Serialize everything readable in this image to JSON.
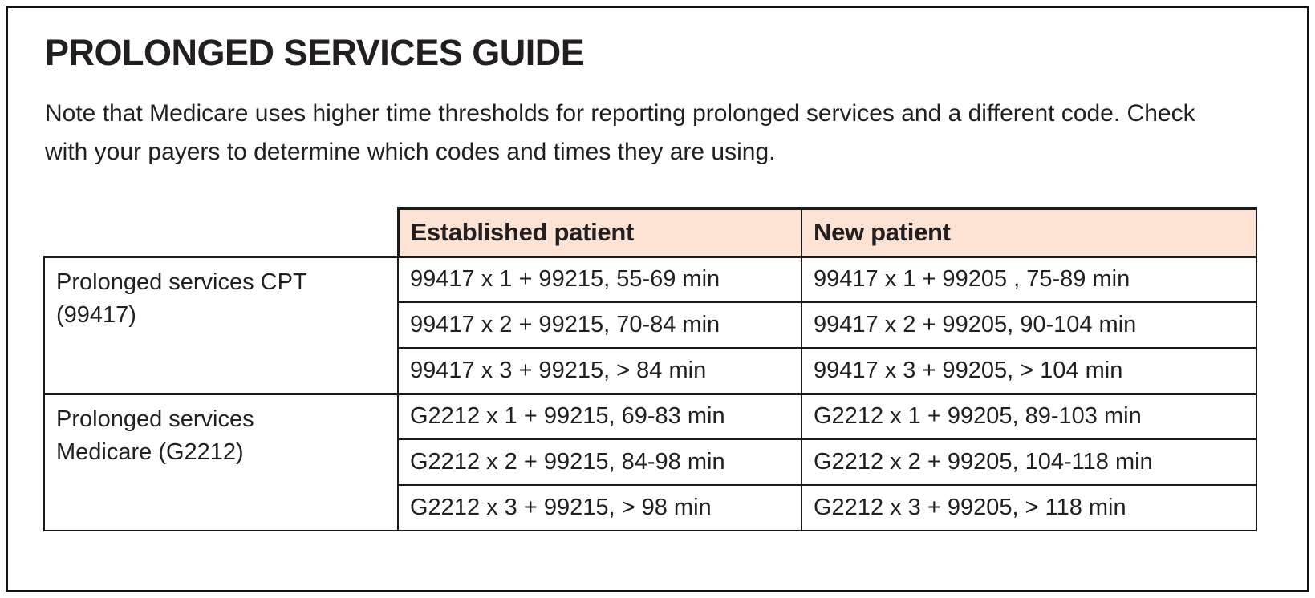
{
  "page": {
    "title": "PROLONGED SERVICES GUIDE",
    "note": "Note that Medicare uses higher time thresholds for reporting prolonged services and a different code. Check with your payers to determine which codes and times they are using."
  },
  "colors": {
    "header_bg": "#fce3d3",
    "text": "#231f20",
    "border": "#1a1a1a"
  },
  "table": {
    "headers": [
      "Established patient",
      "New patient"
    ],
    "groups": [
      {
        "label": "Prolonged services CPT\n(99417)",
        "rows": [
          {
            "established": "99417 x 1 + 99215, 55-69 min",
            "new": "99417 x 1 + 99205 , 75-89 min"
          },
          {
            "established": "99417 x 2 + 99215, 70-84 min",
            "new": "99417 x 2 + 99205, 90-104 min"
          },
          {
            "established": "99417 x 3 + 99215, > 84 min",
            "new": "99417 x 3 + 99205, > 104 min"
          }
        ]
      },
      {
        "label": "Prolonged services\nMedicare (G2212)",
        "rows": [
          {
            "established": "G2212 x 1 + 99215, 69-83 min",
            "new": "G2212 x 1 + 99205, 89-103 min"
          },
          {
            "established": "G2212 x 2 + 99215, 84-98 min",
            "new": "G2212 x 2 + 99205, 104-118 min"
          },
          {
            "established": "G2212 x 3 + 99215, > 98 min",
            "new": "G2212 x 3 + 99205, > 118 min"
          }
        ]
      }
    ]
  }
}
